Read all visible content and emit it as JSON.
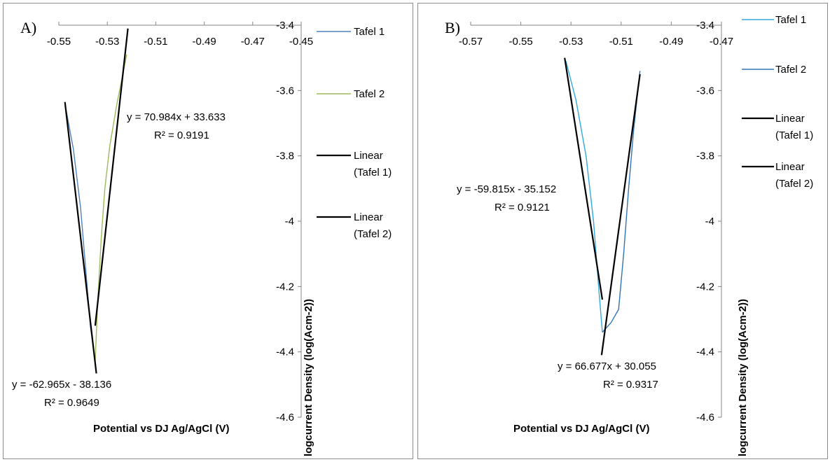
{
  "colors": {
    "a_tafel1": "#4f81bd",
    "a_tafel2": "#9bbb59",
    "b_tafel1": "#31a9e0",
    "b_tafel2": "#2e75b6",
    "trendline": "#000000",
    "border": "#8c8c8c"
  },
  "chart_data": [
    {
      "type": "line",
      "panel_label": "A)",
      "xlabel": "Potential vs DJ Ag/AgCl (V)",
      "ylabel": "logcurrent Density (log(Acm-2))",
      "xlim": [
        -0.55,
        -0.45
      ],
      "ylim": [
        -4.6,
        -3.4
      ],
      "x_ticks": [
        "-0.55",
        "-0.53",
        "-0.51",
        "-0.49",
        "-0.47",
        "-0.45"
      ],
      "x_tick_values": [
        -0.55,
        -0.53,
        -0.51,
        -0.49,
        -0.47,
        -0.45
      ],
      "y_ticks": [
        "-3.4",
        "-3.6",
        "-3.8",
        "-4",
        "-4.2",
        "-4.4",
        "-4.6"
      ],
      "y_tick_values": [
        -3.4,
        -3.6,
        -3.8,
        -4,
        -4.2,
        -4.4,
        -4.6
      ],
      "legend_position": "right",
      "series": [
        {
          "name": "Tafel 1",
          "color_key": "a_tafel1",
          "x": [
            -0.547,
            -0.544,
            -0.541,
            -0.539,
            -0.537,
            -0.535
          ],
          "y": [
            -3.66,
            -3.78,
            -3.96,
            -4.14,
            -4.32,
            -4.43
          ]
        },
        {
          "name": "Tafel 2",
          "color_key": "a_tafel2",
          "x": [
            -0.535,
            -0.534,
            -0.5325,
            -0.531,
            -0.529,
            -0.526,
            -0.522
          ],
          "y": [
            -4.43,
            -4.25,
            -4.05,
            -3.9,
            -3.77,
            -3.64,
            -3.49
          ]
        },
        {
          "name": "Linear\n(Tafel 1)",
          "color_key": "trendline",
          "x": [
            -0.5475,
            -0.5345
          ],
          "y": [
            -3.635,
            -4.466
          ]
        },
        {
          "name": "Linear\n(Tafel 2)",
          "color_key": "trendline",
          "x": [
            -0.535,
            -0.5215
          ],
          "y": [
            -4.32,
            -3.41
          ]
        }
      ],
      "annotations": [
        {
          "equation": "y = 70.984x + 33.633",
          "r2": "R² = 0.9191"
        },
        {
          "equation": "y = -62.965x - 38.136",
          "r2": "R² = 0.9649"
        }
      ]
    },
    {
      "type": "line",
      "panel_label": "B)",
      "xlabel": "Potential vs DJ Ag/AgCl (V)",
      "ylabel": "logcurrent Density (log(Acm-2))",
      "xlim": [
        -0.57,
        -0.47
      ],
      "ylim": [
        -4.6,
        -3.4
      ],
      "x_ticks": [
        "-0.57",
        "-0.55",
        "-0.53",
        "-0.51",
        "-0.49",
        "-0.47"
      ],
      "x_tick_values": [
        -0.57,
        -0.55,
        -0.53,
        -0.51,
        -0.49,
        -0.47
      ],
      "y_ticks": [
        "-3.4",
        "-3.6",
        "-3.8",
        "-4",
        "-4.2",
        "-4.4",
        "-4.6"
      ],
      "y_tick_values": [
        -3.4,
        -3.6,
        -3.8,
        -4,
        -4.2,
        -4.4,
        -4.6
      ],
      "legend_position": "right",
      "series": [
        {
          "name": "Tafel 1",
          "color_key": "b_tafel1",
          "x": [
            -0.532,
            -0.528,
            -0.524,
            -0.521,
            -0.519,
            -0.5175
          ],
          "y": [
            -3.51,
            -3.63,
            -3.8,
            -4.0,
            -4.2,
            -4.34
          ]
        },
        {
          "name": "Tafel 2",
          "color_key": "b_tafel2",
          "x": [
            -0.5175,
            -0.514,
            -0.511,
            -0.509,
            -0.507,
            -0.505,
            -0.5025
          ],
          "y": [
            -4.34,
            -4.31,
            -4.27,
            -4.1,
            -3.9,
            -3.72,
            -3.54
          ]
        },
        {
          "name": "Linear\n(Tafel 1)",
          "color_key": "trendline",
          "x": [
            -0.5325,
            -0.5175
          ],
          "y": [
            -3.5,
            -4.24
          ]
        },
        {
          "name": "Linear\n(Tafel 2)",
          "color_key": "trendline",
          "x": [
            -0.5178,
            -0.5025
          ],
          "y": [
            -4.41,
            -3.55
          ]
        }
      ],
      "annotations": [
        {
          "equation": "y = -59.815x - 35.152",
          "r2": "R² = 0.9121"
        },
        {
          "equation": "y = 66.677x + 30.055",
          "r2": "R² = 0.9317"
        }
      ]
    }
  ]
}
